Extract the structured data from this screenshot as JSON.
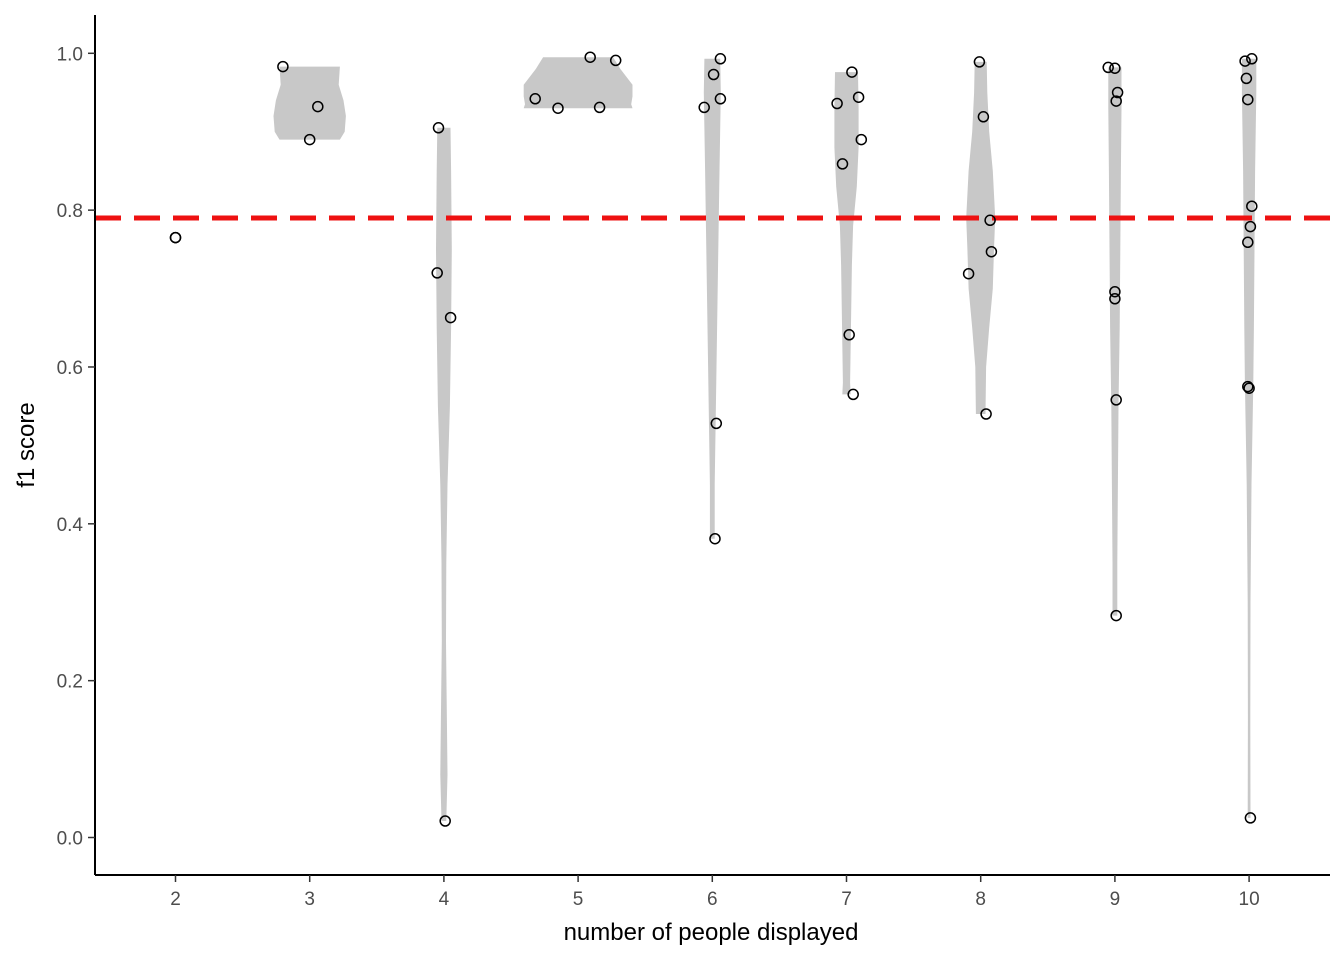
{
  "chart_data": {
    "type": "violin",
    "xlabel": "number of people displayed",
    "ylabel": "f1 score",
    "categories": [
      "2",
      "3",
      "4",
      "5",
      "6",
      "7",
      "8",
      "9",
      "10"
    ],
    "yticks": [
      "0.0",
      "0.2",
      "0.4",
      "0.6",
      "0.8",
      "1.0"
    ],
    "ylim": [
      -0.048,
      1.05
    ],
    "reference_line": {
      "y": 0.79,
      "style": "dashed",
      "color": "#ee1111"
    },
    "violin_color": "#c8c8c8",
    "point_style": "hollow circle",
    "grid": false,
    "groups": [
      {
        "x": 2,
        "points": [
          [
            2.0,
            0.765
          ],
          [
            2.0,
            0.765
          ]
        ],
        "violin": []
      },
      {
        "x": 3,
        "points": [
          [
            2.8,
            0.983
          ],
          [
            3.06,
            0.932
          ],
          [
            3.0,
            0.89
          ]
        ],
        "violin": [
          [
            0.983,
            0.25
          ],
          [
            0.96,
            0.24
          ],
          [
            0.94,
            0.28
          ],
          [
            0.92,
            0.3
          ],
          [
            0.9,
            0.29
          ],
          [
            0.89,
            0.25
          ]
        ]
      },
      {
        "x": 4,
        "points": [
          [
            3.96,
            0.905
          ],
          [
            3.95,
            0.72
          ],
          [
            4.05,
            0.663
          ],
          [
            4.01,
            0.021
          ]
        ],
        "violin": [
          [
            0.905,
            0.055
          ],
          [
            0.85,
            0.06
          ],
          [
            0.75,
            0.065
          ],
          [
            0.65,
            0.06
          ],
          [
            0.55,
            0.05
          ],
          [
            0.45,
            0.03
          ],
          [
            0.35,
            0.02
          ],
          [
            0.25,
            0.017
          ],
          [
            0.15,
            0.025
          ],
          [
            0.08,
            0.03
          ],
          [
            0.021,
            0.02
          ]
        ]
      },
      {
        "x": 5,
        "points": [
          [
            5.09,
            0.995
          ],
          [
            5.28,
            0.991
          ],
          [
            4.68,
            0.942
          ],
          [
            4.85,
            0.93
          ],
          [
            5.16,
            0.931
          ]
        ],
        "violin": [
          [
            0.995,
            0.29
          ],
          [
            0.98,
            0.35
          ],
          [
            0.96,
            0.45
          ],
          [
            0.945,
            0.45
          ],
          [
            0.935,
            0.44
          ],
          [
            0.93,
            0.45
          ]
        ]
      },
      {
        "x": 6,
        "points": [
          [
            6.06,
            0.993
          ],
          [
            6.01,
            0.973
          ],
          [
            6.06,
            0.942
          ],
          [
            5.94,
            0.931
          ],
          [
            6.03,
            0.528
          ],
          [
            6.02,
            0.381
          ]
        ],
        "violin": [
          [
            0.993,
            0.065
          ],
          [
            0.95,
            0.07
          ],
          [
            0.85,
            0.06
          ],
          [
            0.75,
            0.05
          ],
          [
            0.65,
            0.04
          ],
          [
            0.55,
            0.03
          ],
          [
            0.45,
            0.02
          ],
          [
            0.381,
            0.02
          ]
        ]
      },
      {
        "x": 7,
        "points": [
          [
            7.04,
            0.976
          ],
          [
            6.93,
            0.936
          ],
          [
            7.09,
            0.944
          ],
          [
            7.11,
            0.89
          ],
          [
            6.97,
            0.859
          ],
          [
            7.02,
            0.641
          ],
          [
            7.05,
            0.565
          ]
        ],
        "violin": [
          [
            0.976,
            0.095
          ],
          [
            0.93,
            0.1
          ],
          [
            0.88,
            0.1
          ],
          [
            0.83,
            0.085
          ],
          [
            0.78,
            0.055
          ],
          [
            0.73,
            0.045
          ],
          [
            0.68,
            0.04
          ],
          [
            0.63,
            0.035
          ],
          [
            0.58,
            0.03
          ],
          [
            0.565,
            0.035
          ]
        ]
      },
      {
        "x": 8,
        "points": [
          [
            7.99,
            0.989
          ],
          [
            8.02,
            0.919
          ],
          [
            8.07,
            0.787
          ],
          [
            8.08,
            0.747
          ],
          [
            7.91,
            0.719
          ],
          [
            8.04,
            0.54
          ]
        ],
        "violin": [
          [
            0.989,
            0.05
          ],
          [
            0.95,
            0.055
          ],
          [
            0.9,
            0.07
          ],
          [
            0.85,
            0.1
          ],
          [
            0.79,
            0.12
          ],
          [
            0.75,
            0.11
          ],
          [
            0.7,
            0.1
          ],
          [
            0.65,
            0.07
          ],
          [
            0.6,
            0.045
          ],
          [
            0.54,
            0.04
          ]
        ]
      },
      {
        "x": 9,
        "points": [
          [
            8.95,
            0.982
          ],
          [
            9.0,
            0.981
          ],
          [
            9.02,
            0.95
          ],
          [
            9.01,
            0.939
          ],
          [
            9.0,
            0.696
          ],
          [
            9.0,
            0.687
          ],
          [
            9.01,
            0.558
          ],
          [
            9.01,
            0.283
          ]
        ],
        "violin": [
          [
            0.982,
            0.055
          ],
          [
            0.93,
            0.055
          ],
          [
            0.85,
            0.05
          ],
          [
            0.75,
            0.045
          ],
          [
            0.65,
            0.04
          ],
          [
            0.55,
            0.03
          ],
          [
            0.45,
            0.025
          ],
          [
            0.35,
            0.02
          ],
          [
            0.283,
            0.02
          ]
        ]
      },
      {
        "x": 10,
        "points": [
          [
            9.97,
            0.99
          ],
          [
            10.02,
            0.993
          ],
          [
            9.98,
            0.968
          ],
          [
            9.99,
            0.941
          ],
          [
            10.02,
            0.805
          ],
          [
            10.01,
            0.779
          ],
          [
            9.99,
            0.759
          ],
          [
            9.99,
            0.575
          ],
          [
            10.0,
            0.573
          ],
          [
            10.01,
            0.025
          ]
        ],
        "violin": [
          [
            0.993,
            0.06
          ],
          [
            0.95,
            0.06
          ],
          [
            0.85,
            0.05
          ],
          [
            0.75,
            0.045
          ],
          [
            0.65,
            0.04
          ],
          [
            0.58,
            0.035
          ],
          [
            0.45,
            0.02
          ],
          [
            0.3,
            0.012
          ],
          [
            0.15,
            0.01
          ],
          [
            0.025,
            0.012
          ]
        ]
      }
    ]
  }
}
